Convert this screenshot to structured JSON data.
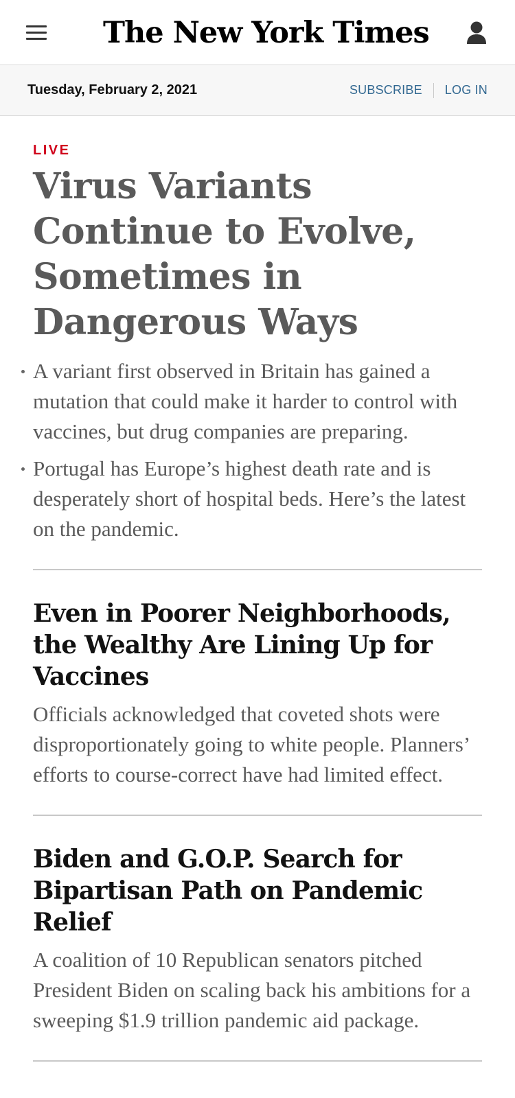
{
  "header": {
    "logo_text": "The New York Times",
    "date": "Tuesday, February 2, 2021",
    "subscribe_label": "SUBSCRIBE",
    "login_label": "LOG IN"
  },
  "lead_story": {
    "label": "LIVE",
    "headline": "Virus Variants Continue to Evolve, Sometimes in Dangerous Ways",
    "bullets": [
      "A variant first observed in Britain has gained a mutation that could make it harder to control with vaccines, but drug companies are preparing.",
      "Portugal has Europe’s highest death rate and is desperately short of hospital beds. Here’s the latest on the pandemic."
    ]
  },
  "stories": [
    {
      "headline": "Even in Poorer Neighborhoods, the Wealthy Are Lining Up for Vaccines",
      "summary": "Officials acknowledged that coveted shots were disproportionately going to white people. Planners’ efforts to course-correct have had limited effect."
    },
    {
      "headline": "Biden and G.O.P. Search for Bipartisan Path on Pandemic Relief",
      "summary": "A coalition of 10 Republican senators pitched President Biden on scaling back his ambitions for a sweeping $1.9 trillion pandemic aid package."
    }
  ],
  "colors": {
    "live_red": "#d0021b",
    "link_blue": "#326891",
    "lead_headline_gray": "#5a5a5a"
  },
  "icons": {
    "menu": "hamburger-menu-icon",
    "account": "user-account-icon"
  }
}
